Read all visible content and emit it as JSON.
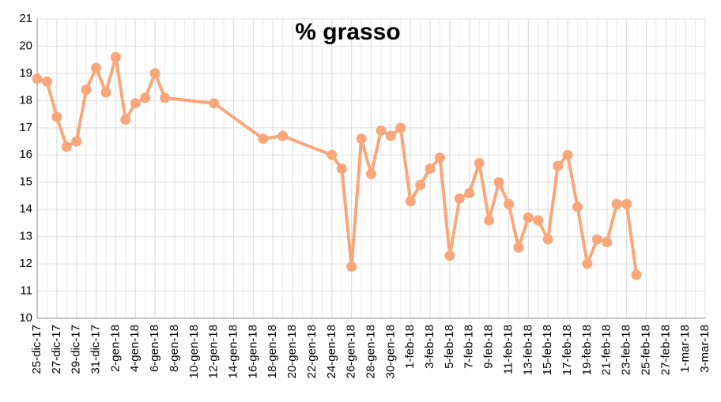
{
  "chart_data": {
    "type": "line",
    "title": "% grasso",
    "x": [
      "25-dic-17",
      "26-dic-17",
      "27-dic-17",
      "28-dic-17",
      "29-dic-17",
      "30-dic-17",
      "31-dic-17",
      "1-gen-18",
      "2-gen-18",
      "3-gen-18",
      "4-gen-18",
      "5-gen-18",
      "6-gen-18",
      "7-gen-18",
      "12-gen-18",
      "17-gen-18",
      "19-gen-18",
      "24-gen-18",
      "25-gen-18",
      "26-gen-18",
      "27-gen-18",
      "28-gen-18",
      "29-gen-18",
      "30-gen-18",
      "31-gen-18",
      "1-feb-18",
      "2-feb-18",
      "3-feb-18",
      "4-feb-18",
      "5-feb-18",
      "6-feb-18",
      "7-feb-18",
      "8-feb-18",
      "9-feb-18",
      "10-feb-18",
      "11-feb-18",
      "12-feb-18",
      "13-feb-18",
      "14-feb-18",
      "15-feb-18",
      "16-feb-18",
      "17-feb-18",
      "18-feb-18",
      "19-feb-18",
      "20-feb-18",
      "21-feb-18",
      "22-feb-18",
      "23-feb-18",
      "24-feb-18"
    ],
    "values": [
      18.8,
      18.7,
      17.4,
      16.3,
      16.5,
      18.4,
      19.2,
      18.3,
      19.6,
      17.3,
      17.9,
      18.1,
      19.0,
      18.1,
      17.9,
      16.6,
      16.7,
      16.0,
      15.5,
      11.9,
      16.6,
      15.3,
      16.9,
      16.7,
      17.0,
      14.3,
      14.9,
      15.5,
      15.9,
      12.3,
      14.4,
      14.6,
      15.7,
      13.6,
      15.0,
      14.2,
      12.6,
      13.7,
      13.6,
      12.9,
      15.6,
      16.0,
      14.1,
      12.0,
      12.9,
      12.8,
      14.2,
      14.2,
      11.6
    ],
    "color": "#f9a77a",
    "xlim": [
      "25-dic-17",
      "3-mar-18"
    ],
    "xticks": [
      "25-dic-17",
      "27-dic-17",
      "29-dic-17",
      "31-dic-17",
      "2-gen-18",
      "4-gen-18",
      "6-gen-18",
      "8-gen-18",
      "10-gen-18",
      "12-gen-18",
      "14-gen-18",
      "16-gen-18",
      "18-gen-18",
      "20-gen-18",
      "22-gen-18",
      "24-gen-18",
      "26-gen-18",
      "28-gen-18",
      "30-gen-18",
      "1-feb-18",
      "3-feb-18",
      "5-feb-18",
      "7-feb-18",
      "9-feb-18",
      "11-feb-18",
      "13-feb-18",
      "15-feb-18",
      "17-feb-18",
      "19-feb-18",
      "21-feb-18",
      "23-feb-18",
      "25-feb-18",
      "27-feb-18",
      "1-mar-18",
      "3-mar-18"
    ],
    "ylim": [
      10,
      21
    ],
    "yticks": [
      10,
      11,
      12,
      13,
      14,
      15,
      16,
      17,
      18,
      19,
      20,
      21
    ],
    "grid": true
  }
}
